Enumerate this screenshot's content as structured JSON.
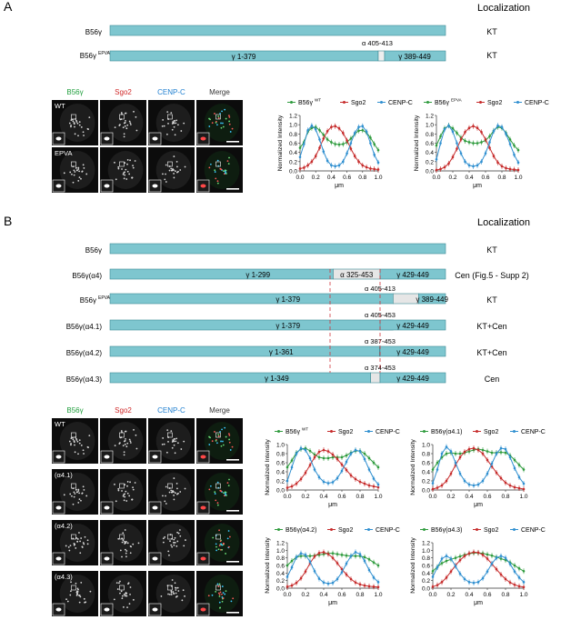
{
  "panel_A": {
    "label": "A",
    "localization_header": "Localization",
    "constructs": [
      {
        "name": "B56γ",
        "superscript": "",
        "segments": [],
        "localization": "KT"
      },
      {
        "name": "B56γ",
        "superscript": "EPVA",
        "segments": [
          {
            "label": "γ 1-379"
          },
          {
            "label": "γ 389-449"
          }
        ],
        "alpha_label": "α 405-413",
        "localization": "KT"
      }
    ],
    "micro": {
      "col_labels": [
        "B56γ",
        "Sgo2",
        "CENP-C",
        "Merge"
      ],
      "col_colors": [
        "#1f9e3c",
        "#d02828",
        "#1f7fd0",
        "#333333"
      ],
      "rows": [
        "WT",
        "EPVA"
      ]
    },
    "plots": [
      {
        "legend": [
          "B56γ",
          "WT",
          "Sgo2",
          "CENP-C"
        ]
      },
      {
        "legend": [
          "B56γ",
          "EPVA",
          "Sgo2",
          "CENP-C"
        ]
      }
    ]
  },
  "panel_B": {
    "label": "B",
    "localization_header": "Localization",
    "constructs": [
      {
        "name": "B56γ",
        "superscript": "",
        "left": "",
        "mid": "",
        "right": "",
        "localization": "KT"
      },
      {
        "name": "B56γ(α4)",
        "superscript": "",
        "left": "γ 1-299",
        "mid": "α 325-453",
        "right": "γ 429-449",
        "localization": "Cen (Fig.5 - Supp 2)"
      },
      {
        "name": "B56γ",
        "superscript": "EPVA",
        "left": "γ 1-379",
        "mid": "α 405-413",
        "right": "γ 389-449",
        "localization": "KT"
      },
      {
        "name": "B56γ(α4.1)",
        "superscript": "",
        "left": "γ 1-379",
        "mid": "α 405-453",
        "right": "γ 429-449",
        "localization": "KT+Cen"
      },
      {
        "name": "B56γ(α4.2)",
        "superscript": "",
        "left": "γ 1-361",
        "mid": "α 387-453",
        "right": "γ 429-449",
        "localization": "KT+Cen"
      },
      {
        "name": "B56γ(α4.3)",
        "superscript": "",
        "left": "γ 1-349",
        "mid": "α 374-453",
        "right": "γ 429-449",
        "localization": "Cen"
      }
    ],
    "micro": {
      "col_labels": [
        "B56γ",
        "Sgo2",
        "CENP-C",
        "Merge"
      ],
      "rows": [
        "WT",
        "(α4.1)",
        "(α4.2)",
        "(α4.3)"
      ]
    },
    "plots": [
      {
        "legend": [
          "B56γ",
          "WT",
          "Sgo2",
          "CENP-C"
        ]
      },
      {
        "legend": [
          "B56γ(α4.1)",
          "",
          "Sgo2",
          "CENP-C"
        ]
      },
      {
        "legend": [
          "B56γ(α4.2)",
          "",
          "Sgo2",
          "CENP-C"
        ]
      },
      {
        "legend": [
          "B56γ(α4.3)",
          "",
          "Sgo2",
          "CENP-C"
        ]
      }
    ]
  },
  "colors": {
    "bar": "#7ec6cf",
    "bar_stroke": "#3d8a94",
    "gray": "#e6e6e6",
    "green": "#2e9b3d",
    "red": "#c62b2b",
    "blue": "#2f8fd0",
    "dash": "#d0343a"
  },
  "chart_data": [
    {
      "type": "line",
      "title": "",
      "xlabel": "μm",
      "ylabel": "Normalized Intensity",
      "xlim": [
        0,
        1.0
      ],
      "ylim": [
        0,
        1.2
      ],
      "x": [
        0,
        0.05,
        0.1,
        0.15,
        0.2,
        0.25,
        0.3,
        0.35,
        0.4,
        0.45,
        0.5,
        0.55,
        0.6,
        0.65,
        0.7,
        0.75,
        0.8,
        0.85,
        0.9,
        0.95,
        1.0
      ],
      "series": [
        {
          "name": "B56γ WT",
          "values": [
            0.5,
            0.62,
            0.85,
            0.93,
            0.95,
            0.88,
            0.78,
            0.68,
            0.62,
            0.58,
            0.57,
            0.58,
            0.62,
            0.7,
            0.8,
            0.87,
            0.88,
            0.83,
            0.72,
            0.58,
            0.45
          ]
        },
        {
          "name": "Sgo2",
          "values": [
            0.05,
            0.07,
            0.12,
            0.2,
            0.32,
            0.5,
            0.7,
            0.86,
            0.95,
            0.97,
            0.92,
            0.82,
            0.66,
            0.48,
            0.32,
            0.2,
            0.12,
            0.08,
            0.05,
            0.04,
            0.03
          ]
        },
        {
          "name": "CENP-C",
          "values": [
            0.3,
            0.58,
            0.88,
            0.98,
            0.9,
            0.68,
            0.42,
            0.22,
            0.12,
            0.1,
            0.12,
            0.2,
            0.38,
            0.6,
            0.82,
            0.95,
            0.97,
            0.85,
            0.6,
            0.35,
            0.18
          ]
        }
      ]
    },
    {
      "type": "line",
      "title": "",
      "xlabel": "μm",
      "ylabel": "Normalized Intensity",
      "xlim": [
        0,
        1.0
      ],
      "ylim": [
        0,
        1.2
      ],
      "x": [
        0,
        0.05,
        0.1,
        0.15,
        0.2,
        0.25,
        0.3,
        0.35,
        0.4,
        0.45,
        0.5,
        0.55,
        0.6,
        0.65,
        0.7,
        0.75,
        0.8,
        0.85,
        0.9,
        0.95,
        1.0
      ],
      "series": [
        {
          "name": "B56γ EPVA",
          "values": [
            0.55,
            0.75,
            0.92,
            0.98,
            0.92,
            0.82,
            0.72,
            0.65,
            0.62,
            0.6,
            0.6,
            0.62,
            0.66,
            0.75,
            0.87,
            0.95,
            0.93,
            0.82,
            0.68,
            0.55,
            0.45
          ]
        },
        {
          "name": "Sgo2",
          "values": [
            0.02,
            0.04,
            0.08,
            0.16,
            0.3,
            0.48,
            0.68,
            0.84,
            0.93,
            0.97,
            0.93,
            0.84,
            0.68,
            0.5,
            0.32,
            0.18,
            0.1,
            0.06,
            0.04,
            0.03,
            0.02
          ]
        },
        {
          "name": "CENP-C",
          "values": [
            0.25,
            0.6,
            0.9,
            0.98,
            0.85,
            0.6,
            0.38,
            0.2,
            0.12,
            0.1,
            0.12,
            0.2,
            0.38,
            0.62,
            0.86,
            0.98,
            0.95,
            0.8,
            0.58,
            0.35,
            0.18
          ]
        }
      ]
    },
    {
      "type": "line",
      "title": "",
      "xlabel": "μm",
      "ylabel": "Normalized Intensity",
      "xlim": [
        0,
        1.0
      ],
      "ylim": [
        0,
        1.0
      ],
      "x": [
        0,
        0.05,
        0.1,
        0.15,
        0.2,
        0.25,
        0.3,
        0.35,
        0.4,
        0.45,
        0.5,
        0.55,
        0.6,
        0.65,
        0.7,
        0.75,
        0.8,
        0.85,
        0.9,
        0.95,
        1.0
      ],
      "series": [
        {
          "name": "B56γ WT",
          "values": [
            0.5,
            0.65,
            0.82,
            0.9,
            0.92,
            0.86,
            0.78,
            0.72,
            0.7,
            0.7,
            0.72,
            0.72,
            0.72,
            0.76,
            0.82,
            0.86,
            0.86,
            0.8,
            0.7,
            0.6,
            0.5
          ]
        },
        {
          "name": "Sgo2",
          "values": [
            0.05,
            0.08,
            0.14,
            0.24,
            0.38,
            0.55,
            0.72,
            0.84,
            0.88,
            0.85,
            0.78,
            0.68,
            0.56,
            0.44,
            0.32,
            0.24,
            0.18,
            0.14,
            0.1,
            0.08,
            0.06
          ]
        },
        {
          "name": "CENP-C",
          "values": [
            0.2,
            0.5,
            0.8,
            0.92,
            0.88,
            0.7,
            0.45,
            0.28,
            0.18,
            0.15,
            0.17,
            0.26,
            0.42,
            0.62,
            0.8,
            0.88,
            0.85,
            0.68,
            0.45,
            0.25,
            0.12
          ]
        }
      ]
    },
    {
      "type": "line",
      "title": "",
      "xlabel": "μm",
      "ylabel": "Normalized Intensity",
      "xlim": [
        0,
        1.0
      ],
      "ylim": [
        0,
        1.0
      ],
      "x": [
        0,
        0.05,
        0.1,
        0.15,
        0.2,
        0.25,
        0.3,
        0.35,
        0.4,
        0.45,
        0.5,
        0.55,
        0.6,
        0.65,
        0.7,
        0.75,
        0.8,
        0.85,
        0.9,
        0.95,
        1.0
      ],
      "series": [
        {
          "name": "B56γ(α4.1)",
          "values": [
            0.45,
            0.6,
            0.72,
            0.8,
            0.82,
            0.8,
            0.8,
            0.82,
            0.85,
            0.88,
            0.9,
            0.88,
            0.85,
            0.82,
            0.82,
            0.83,
            0.82,
            0.76,
            0.66,
            0.55,
            0.45
          ]
        },
        {
          "name": "Sgo2",
          "values": [
            0.02,
            0.05,
            0.1,
            0.2,
            0.36,
            0.55,
            0.72,
            0.84,
            0.9,
            0.92,
            0.88,
            0.8,
            0.66,
            0.52,
            0.38,
            0.26,
            0.16,
            0.1,
            0.06,
            0.04,
            0.02
          ]
        },
        {
          "name": "CENP-C",
          "values": [
            0.15,
            0.45,
            0.8,
            0.95,
            0.85,
            0.6,
            0.36,
            0.2,
            0.12,
            0.1,
            0.12,
            0.2,
            0.36,
            0.58,
            0.8,
            0.92,
            0.9,
            0.72,
            0.48,
            0.28,
            0.14
          ]
        }
      ]
    },
    {
      "type": "line",
      "title": "",
      "xlabel": "μm",
      "ylabel": "Normalized Intensity",
      "xlim": [
        0,
        1.0
      ],
      "ylim": [
        0,
        1.2
      ],
      "x": [
        0,
        0.05,
        0.1,
        0.15,
        0.2,
        0.25,
        0.3,
        0.35,
        0.4,
        0.45,
        0.5,
        0.55,
        0.6,
        0.65,
        0.7,
        0.75,
        0.8,
        0.85,
        0.9,
        0.95,
        1.0
      ],
      "series": [
        {
          "name": "B56γ(α4.2)",
          "values": [
            0.6,
            0.72,
            0.82,
            0.85,
            0.85,
            0.85,
            0.86,
            0.88,
            0.9,
            0.92,
            0.92,
            0.9,
            0.88,
            0.86,
            0.85,
            0.85,
            0.85,
            0.82,
            0.76,
            0.68,
            0.6
          ]
        },
        {
          "name": "Sgo2",
          "values": [
            0.04,
            0.07,
            0.14,
            0.26,
            0.44,
            0.66,
            0.84,
            0.93,
            0.95,
            0.9,
            0.8,
            0.66,
            0.5,
            0.36,
            0.24,
            0.15,
            0.1,
            0.07,
            0.05,
            0.04,
            0.03
          ]
        },
        {
          "name": "CENP-C",
          "values": [
            0.3,
            0.55,
            0.82,
            0.92,
            0.88,
            0.7,
            0.45,
            0.25,
            0.15,
            0.12,
            0.14,
            0.24,
            0.42,
            0.65,
            0.85,
            0.95,
            0.9,
            0.72,
            0.48,
            0.28,
            0.16
          ]
        }
      ]
    },
    {
      "type": "line",
      "title": "",
      "xlabel": "μm",
      "ylabel": "Normalized Intensity",
      "xlim": [
        0,
        1.0
      ],
      "ylim": [
        0,
        1.2
      ],
      "x": [
        0,
        0.05,
        0.1,
        0.15,
        0.2,
        0.25,
        0.3,
        0.35,
        0.4,
        0.45,
        0.5,
        0.55,
        0.6,
        0.65,
        0.7,
        0.75,
        0.8,
        0.85,
        0.9,
        0.95,
        1.0
      ],
      "series": [
        {
          "name": "B56γ(α4.3)",
          "values": [
            0.45,
            0.56,
            0.66,
            0.72,
            0.76,
            0.8,
            0.84,
            0.88,
            0.91,
            0.93,
            0.93,
            0.92,
            0.89,
            0.86,
            0.82,
            0.78,
            0.74,
            0.68,
            0.6,
            0.52,
            0.45
          ]
        },
        {
          "name": "Sgo2",
          "values": [
            0.04,
            0.08,
            0.16,
            0.28,
            0.44,
            0.6,
            0.74,
            0.85,
            0.92,
            0.95,
            0.94,
            0.88,
            0.78,
            0.64,
            0.5,
            0.36,
            0.24,
            0.15,
            0.09,
            0.05,
            0.03
          ]
        },
        {
          "name": "CENP-C",
          "values": [
            0.3,
            0.55,
            0.78,
            0.85,
            0.78,
            0.58,
            0.38,
            0.24,
            0.16,
            0.14,
            0.16,
            0.26,
            0.44,
            0.65,
            0.8,
            0.85,
            0.8,
            0.64,
            0.44,
            0.28,
            0.16
          ]
        }
      ]
    }
  ]
}
